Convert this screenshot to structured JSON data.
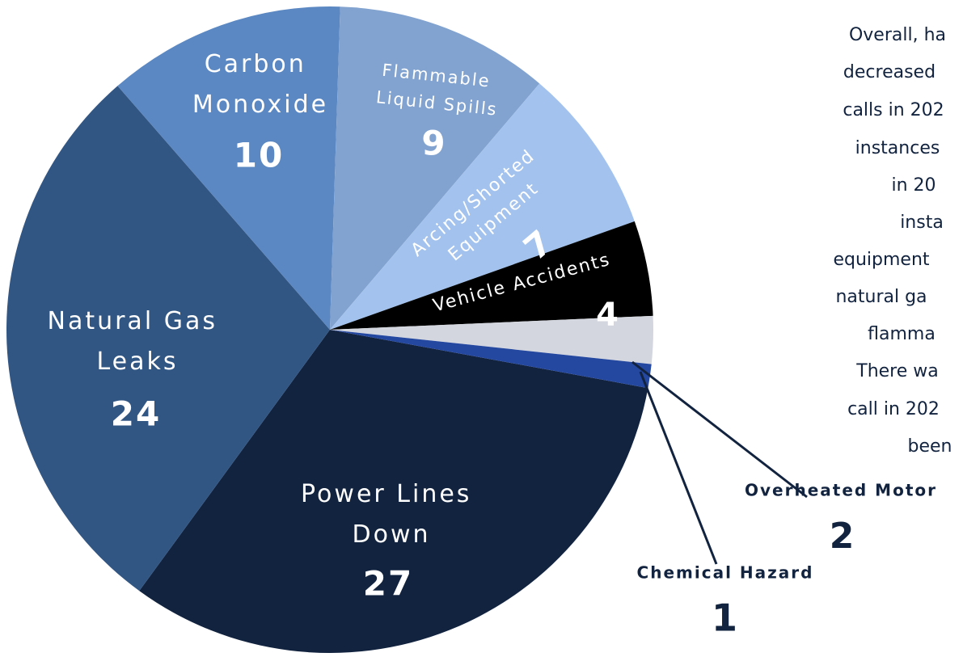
{
  "chart_data": {
    "type": "pie",
    "categories": [
      "Power Lines Down",
      "Natural Gas Leaks",
      "Carbon Monoxide",
      "Flammable Liquid Spills",
      "Arcing/Shorted Equipment",
      "Vehicle Accidents",
      "Overheated Motor",
      "Chemical Hazard"
    ],
    "values": [
      27,
      24,
      10,
      9,
      7,
      4,
      2,
      1
    ],
    "colors": [
      "#12233f",
      "#325684",
      "#5b88c2",
      "#82a3d0",
      "#a3c3ee",
      "#000000",
      "#d3d6de",
      "#2447a0"
    ],
    "note_lines": [
      "Overall, ha",
      "decreased",
      "calls in 202",
      "instances",
      "in 20",
      "insta",
      "equipment",
      "natural ga",
      "flamma",
      "There wa",
      "call in 202",
      "been"
    ]
  }
}
